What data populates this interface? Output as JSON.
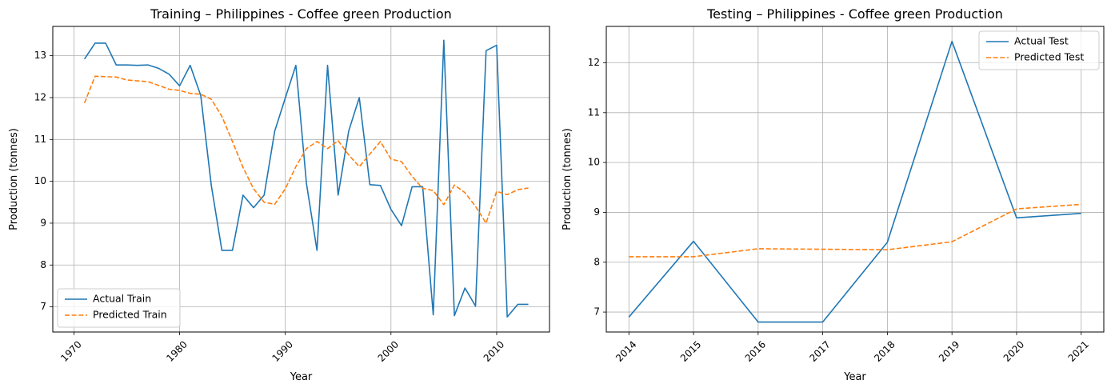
{
  "chart_data": [
    {
      "type": "line",
      "title": "Training – Philippines - Coffee green Production",
      "xlabel": "Year",
      "ylabel": "Production (tonnes)",
      "xlim": [
        1968,
        2015
      ],
      "ylim": [
        6.4,
        13.7
      ],
      "xticks": [
        1970,
        1980,
        1990,
        2000,
        2010
      ],
      "yticks": [
        7,
        8,
        9,
        10,
        11,
        12,
        13
      ],
      "xtick_rotation": 45,
      "grid": true,
      "legend": "lower-left",
      "x": [
        1971,
        1972,
        1973,
        1974,
        1975,
        1976,
        1977,
        1978,
        1979,
        1980,
        1981,
        1982,
        1983,
        1984,
        1985,
        1986,
        1987,
        1988,
        1989,
        1990,
        1991,
        1992,
        1993,
        1994,
        1995,
        1996,
        1997,
        1998,
        1999,
        2000,
        2001,
        2002,
        2003,
        2004,
        2005,
        2006,
        2007,
        2008,
        2009,
        2010,
        2011,
        2012,
        2013
      ],
      "series": [
        {
          "name": "Actual Train",
          "color": "#1f77b4",
          "dash": "solid",
          "values": [
            12.92,
            13.3,
            13.3,
            12.78,
            12.78,
            12.77,
            12.78,
            12.7,
            12.56,
            12.28,
            12.77,
            12.05,
            9.9,
            8.35,
            8.35,
            9.67,
            9.37,
            9.67,
            11.2,
            11.99,
            12.77,
            9.95,
            8.35,
            12.77,
            9.67,
            11.2,
            12.0,
            9.92,
            9.9,
            9.33,
            8.94,
            9.87,
            9.87,
            6.81,
            13.37,
            6.79,
            7.45,
            7.02,
            13.12,
            13.25,
            6.76,
            7.06,
            7.06
          ]
        },
        {
          "name": "Predicted Train",
          "color": "#ff7f0e",
          "dash": "dashed",
          "values": [
            11.87,
            12.51,
            12.5,
            12.49,
            12.42,
            12.4,
            12.38,
            12.29,
            12.2,
            12.17,
            12.1,
            12.08,
            11.96,
            11.55,
            10.95,
            10.33,
            9.82,
            9.5,
            9.45,
            9.82,
            10.35,
            10.78,
            10.95,
            10.78,
            10.97,
            10.63,
            10.35,
            10.65,
            10.95,
            10.53,
            10.47,
            10.12,
            9.83,
            9.78,
            9.44,
            9.91,
            9.73,
            9.4,
            9.0,
            9.76,
            9.68,
            9.8,
            9.84
          ]
        }
      ]
    },
    {
      "type": "line",
      "title": "Testing – Philippines - Coffee green Production",
      "xlabel": "Year",
      "ylabel": "Production (tonnes)",
      "xlim": [
        2013.65,
        2021.35
      ],
      "ylim": [
        6.6,
        12.73
      ],
      "xticks": [
        2014,
        2015,
        2016,
        2017,
        2018,
        2019,
        2020,
        2021
      ],
      "yticks": [
        7,
        8,
        9,
        10,
        11,
        12
      ],
      "xtick_rotation": 45,
      "grid": true,
      "legend": "upper-right",
      "x": [
        2014,
        2015,
        2016,
        2017,
        2018,
        2019,
        2020,
        2021
      ],
      "series": [
        {
          "name": "Actual Test",
          "color": "#1f77b4",
          "dash": "solid",
          "values": [
            6.9,
            8.42,
            6.8,
            6.8,
            8.4,
            12.43,
            8.89,
            8.98
          ]
        },
        {
          "name": "Predicted Test",
          "color": "#ff7f0e",
          "dash": "dashed",
          "values": [
            8.11,
            8.11,
            8.27,
            8.26,
            8.25,
            8.41,
            9.07,
            9.16
          ]
        }
      ]
    }
  ]
}
